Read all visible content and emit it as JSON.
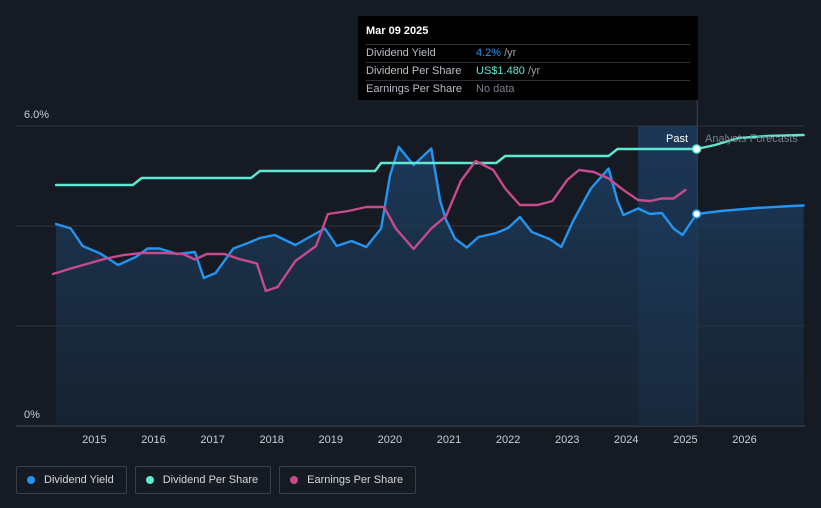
{
  "tooltip": {
    "date": "Mar 09 2025",
    "rows": [
      {
        "label": "Dividend Yield",
        "value": "4.2%",
        "unit": "/yr",
        "color": "#2394f0"
      },
      {
        "label": "Dividend Per Share",
        "value": "US$1.480",
        "unit": "/yr",
        "color": "#5ee8d2"
      },
      {
        "label": "Earnings Per Share",
        "value": "No data",
        "unit": "",
        "color": "#7a808a"
      }
    ]
  },
  "labels": {
    "past": "Past",
    "forecast": "Analysts Forecasts"
  },
  "legend": [
    {
      "label": "Dividend Yield",
      "color": "#2394f0"
    },
    {
      "label": "Dividend Per Share",
      "color": "#5ee8d2"
    },
    {
      "label": "Earnings Per Share",
      "color": "#c64a8c"
    }
  ],
  "chart_data": {
    "type": "line",
    "xlim": [
      2014.3,
      2027.0
    ],
    "ylim": [
      0,
      6.0
    ],
    "y_ticks": [
      {
        "value": 6.0,
        "label": "6.0%"
      },
      {
        "value": 0,
        "label": "0%"
      }
    ],
    "x_ticks": [
      "2015",
      "2016",
      "2017",
      "2018",
      "2019",
      "2020",
      "2021",
      "2022",
      "2023",
      "2024",
      "2025",
      "2026"
    ],
    "gridlines": [
      0,
      2,
      4,
      6
    ],
    "highlight_range": [
      2024.2,
      2025.2
    ],
    "current_x": 2025.19,
    "series": [
      {
        "name": "Dividend Yield",
        "color": "#2394f0",
        "filled": true,
        "points": [
          [
            2014.35,
            4.04
          ],
          [
            2014.6,
            3.95
          ],
          [
            2014.8,
            3.6
          ],
          [
            2015.1,
            3.45
          ],
          [
            2015.4,
            3.22
          ],
          [
            2015.7,
            3.38
          ],
          [
            2015.9,
            3.55
          ],
          [
            2016.1,
            3.55
          ],
          [
            2016.4,
            3.44
          ],
          [
            2016.7,
            3.48
          ],
          [
            2016.85,
            2.96
          ],
          [
            2017.05,
            3.06
          ],
          [
            2017.35,
            3.55
          ],
          [
            2017.6,
            3.66
          ],
          [
            2017.8,
            3.76
          ],
          [
            2018.05,
            3.82
          ],
          [
            2018.4,
            3.62
          ],
          [
            2018.7,
            3.82
          ],
          [
            2018.9,
            3.95
          ],
          [
            2019.1,
            3.6
          ],
          [
            2019.35,
            3.7
          ],
          [
            2019.6,
            3.58
          ],
          [
            2019.85,
            3.95
          ],
          [
            2020.0,
            5.0
          ],
          [
            2020.15,
            5.58
          ],
          [
            2020.4,
            5.22
          ],
          [
            2020.7,
            5.55
          ],
          [
            2020.85,
            4.5
          ],
          [
            2020.95,
            4.12
          ],
          [
            2021.1,
            3.75
          ],
          [
            2021.3,
            3.57
          ],
          [
            2021.5,
            3.78
          ],
          [
            2021.8,
            3.86
          ],
          [
            2022.0,
            3.96
          ],
          [
            2022.2,
            4.18
          ],
          [
            2022.4,
            3.88
          ],
          [
            2022.7,
            3.74
          ],
          [
            2022.9,
            3.58
          ],
          [
            2023.1,
            4.1
          ],
          [
            2023.4,
            4.75
          ],
          [
            2023.7,
            5.15
          ],
          [
            2023.85,
            4.5
          ],
          [
            2023.95,
            4.22
          ],
          [
            2024.2,
            4.35
          ],
          [
            2024.4,
            4.24
          ],
          [
            2024.6,
            4.26
          ],
          [
            2024.8,
            3.95
          ],
          [
            2024.95,
            3.82
          ],
          [
            2025.19,
            4.24
          ],
          [
            2025.6,
            4.3
          ],
          [
            2026.2,
            4.36
          ],
          [
            2026.8,
            4.4
          ],
          [
            2027.0,
            4.41
          ]
        ]
      },
      {
        "name": "Dividend Per Share",
        "color": "#5ee8d2",
        "filled": false,
        "points": [
          [
            2014.35,
            4.82
          ],
          [
            2015.65,
            4.82
          ],
          [
            2015.8,
            4.96
          ],
          [
            2017.65,
            4.96
          ],
          [
            2017.8,
            5.1
          ],
          [
            2019.75,
            5.1
          ],
          [
            2019.85,
            5.26
          ],
          [
            2021.8,
            5.26
          ],
          [
            2021.95,
            5.4
          ],
          [
            2023.7,
            5.4
          ],
          [
            2023.85,
            5.54
          ],
          [
            2025.19,
            5.54
          ],
          [
            2025.5,
            5.62
          ],
          [
            2025.9,
            5.76
          ],
          [
            2026.4,
            5.8
          ],
          [
            2027.0,
            5.82
          ]
        ]
      },
      {
        "name": "Earnings Per Share",
        "color": "#c64a8c",
        "filled": false,
        "points": [
          [
            2014.3,
            3.04
          ],
          [
            2014.6,
            3.15
          ],
          [
            2014.9,
            3.25
          ],
          [
            2015.2,
            3.35
          ],
          [
            2015.5,
            3.42
          ],
          [
            2015.8,
            3.46
          ],
          [
            2016.2,
            3.46
          ],
          [
            2016.5,
            3.44
          ],
          [
            2016.7,
            3.33
          ],
          [
            2016.9,
            3.44
          ],
          [
            2017.2,
            3.44
          ],
          [
            2017.45,
            3.34
          ],
          [
            2017.75,
            3.25
          ],
          [
            2017.9,
            2.7
          ],
          [
            2018.1,
            2.78
          ],
          [
            2018.4,
            3.3
          ],
          [
            2018.75,
            3.6
          ],
          [
            2018.95,
            4.24
          ],
          [
            2019.3,
            4.3
          ],
          [
            2019.6,
            4.38
          ],
          [
            2019.9,
            4.38
          ],
          [
            2020.1,
            3.95
          ],
          [
            2020.4,
            3.54
          ],
          [
            2020.7,
            3.95
          ],
          [
            2020.95,
            4.2
          ],
          [
            2021.2,
            4.9
          ],
          [
            2021.45,
            5.3
          ],
          [
            2021.75,
            5.12
          ],
          [
            2021.95,
            4.75
          ],
          [
            2022.2,
            4.42
          ],
          [
            2022.5,
            4.42
          ],
          [
            2022.75,
            4.5
          ],
          [
            2023.0,
            4.92
          ],
          [
            2023.2,
            5.12
          ],
          [
            2023.45,
            5.08
          ],
          [
            2023.7,
            4.95
          ],
          [
            2023.95,
            4.72
          ],
          [
            2024.2,
            4.52
          ],
          [
            2024.4,
            4.5
          ],
          [
            2024.6,
            4.55
          ],
          [
            2024.8,
            4.55
          ],
          [
            2025.0,
            4.72
          ]
        ]
      }
    ]
  }
}
